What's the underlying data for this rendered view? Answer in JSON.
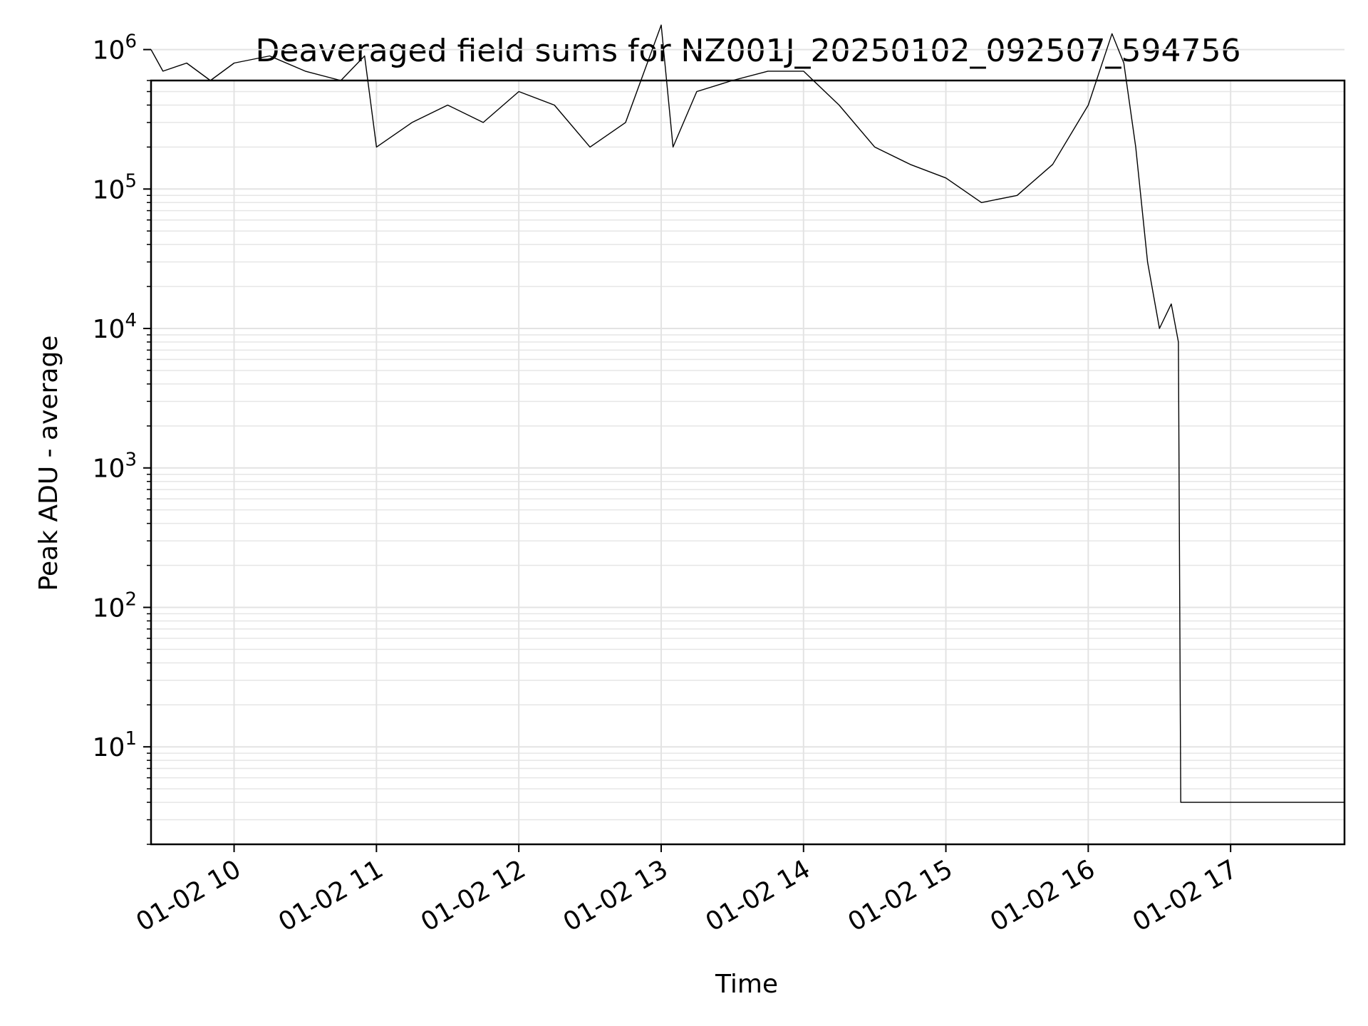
{
  "chart_data": {
    "type": "line",
    "title": "Deaveraged field sums for NZ001J_20250102_092507_594756",
    "xlabel": "Time",
    "ylabel": "Peak ADU - average",
    "yscale": "log",
    "ylim": [
      2,
      600000
    ],
    "xlim": [
      "2025-01-02 09:25",
      "2025-01-02 17:48"
    ],
    "grid": true,
    "series_color": "#000000",
    "x_ticks": [
      {
        "label": "01-02 10",
        "value": "2025-01-02 10:00"
      },
      {
        "label": "01-02 11",
        "value": "2025-01-02 11:00"
      },
      {
        "label": "01-02 12",
        "value": "2025-01-02 12:00"
      },
      {
        "label": "01-02 13",
        "value": "2025-01-02 13:00"
      },
      {
        "label": "01-02 14",
        "value": "2025-01-02 14:00"
      },
      {
        "label": "01-02 15",
        "value": "2025-01-02 15:00"
      },
      {
        "label": "01-02 16",
        "value": "2025-01-02 16:00"
      },
      {
        "label": "01-02 17",
        "value": "2025-01-02 17:00"
      }
    ],
    "y_ticks": [
      {
        "base": "10",
        "exp": "1",
        "value": 10
      },
      {
        "base": "10",
        "exp": "2",
        "value": 100
      },
      {
        "base": "10",
        "exp": "3",
        "value": 1000
      },
      {
        "base": "10",
        "exp": "4",
        "value": 10000
      },
      {
        "base": "10",
        "exp": "5",
        "value": 100000
      },
      {
        "base": "10",
        "exp": "6",
        "value": 1000000
      }
    ],
    "series": [
      {
        "x": [
          "2025-01-02 09:25",
          "2025-01-02 09:30",
          "2025-01-02 09:40",
          "2025-01-02 09:50",
          "2025-01-02 10:00",
          "2025-01-02 10:15",
          "2025-01-02 10:30",
          "2025-01-02 10:45",
          "2025-01-02 10:55",
          "2025-01-02 11:00",
          "2025-01-02 11:15",
          "2025-01-02 11:30",
          "2025-01-02 11:45",
          "2025-01-02 12:00",
          "2025-01-02 12:15",
          "2025-01-02 12:30",
          "2025-01-02 12:45",
          "2025-01-02 13:00",
          "2025-01-02 13:05",
          "2025-01-02 13:15",
          "2025-01-02 13:30",
          "2025-01-02 13:45",
          "2025-01-02 14:00",
          "2025-01-02 14:15",
          "2025-01-02 14:30",
          "2025-01-02 14:45",
          "2025-01-02 15:00",
          "2025-01-02 15:15",
          "2025-01-02 15:30",
          "2025-01-02 15:45",
          "2025-01-02 16:00",
          "2025-01-02 16:10",
          "2025-01-02 16:15",
          "2025-01-02 16:20",
          "2025-01-02 16:25",
          "2025-01-02 16:30",
          "2025-01-02 16:35",
          "2025-01-02 16:38",
          "2025-01-02 16:39",
          "2025-01-02 17:00",
          "2025-01-02 17:30",
          "2025-01-02 17:48"
        ],
        "values": [
          1000000,
          700000,
          800000,
          600000,
          800000,
          900000,
          700000,
          600000,
          900000,
          200000,
          300000,
          400000,
          300000,
          500000,
          400000,
          200000,
          300000,
          1500000,
          200000,
          500000,
          600000,
          700000,
          700000,
          400000,
          200000,
          150000,
          120000,
          80000,
          90000,
          150000,
          400000,
          1300000,
          800000,
          200000,
          30000,
          10000,
          15000,
          8000,
          4,
          4,
          4,
          4
        ]
      }
    ]
  }
}
